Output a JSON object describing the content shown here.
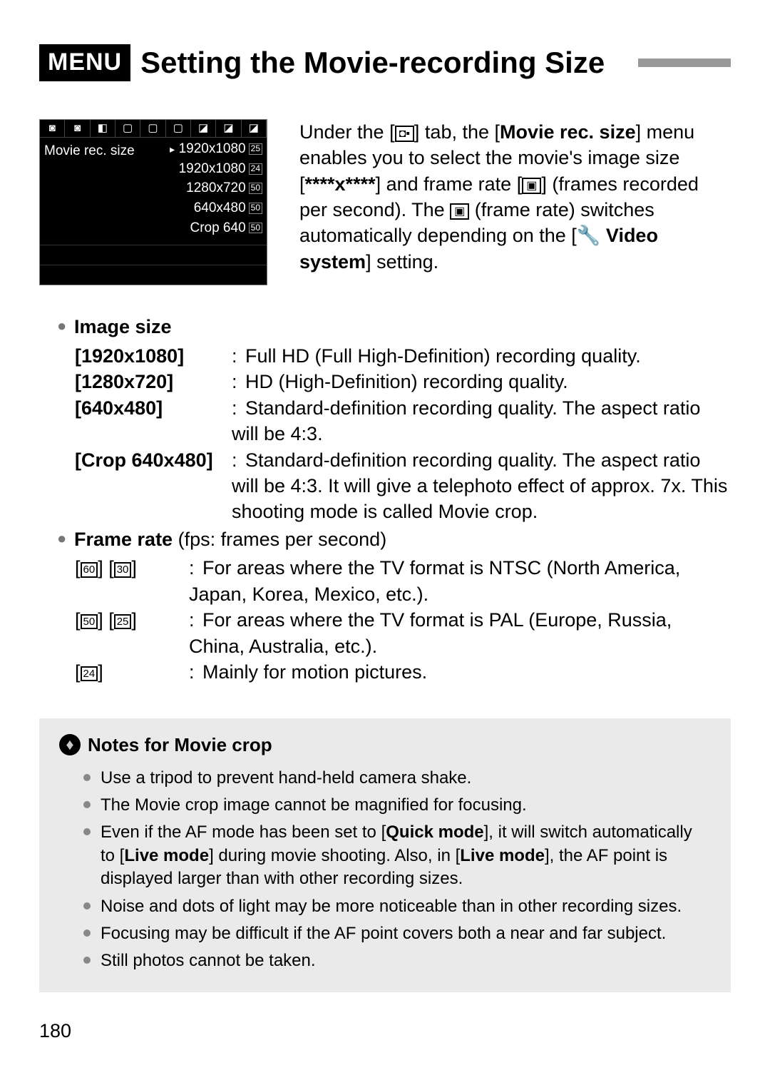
{
  "header": {
    "menu_badge": "MENU",
    "title": "Setting the Movie-recording Size"
  },
  "lcd": {
    "tab_icons": [
      "◙",
      "◙",
      "◧",
      "▢",
      "▢",
      "▢",
      "◪",
      "◪",
      "◪"
    ],
    "label": "Movie rec. size",
    "items": [
      {
        "marker": "▸",
        "res": "1920x1080",
        "fps": "25"
      },
      {
        "marker": "",
        "res": "1920x1080",
        "fps": "24"
      },
      {
        "marker": "",
        "res": "1280x720",
        "fps": "50"
      },
      {
        "marker": "",
        "res": "640x480",
        "fps": "50"
      },
      {
        "marker": "",
        "res": "Crop 640",
        "fps": "50"
      }
    ]
  },
  "intro": {
    "pre_tab": "Under the [",
    "tab_icon": "◘▪",
    "post_tab": "] tab, the [",
    "bold1": "Movie rec. size",
    "seg1": "] menu enables you to select the movie's image size [",
    "bold2": "****x****",
    "seg2": "] and frame rate [",
    "fr_icon": "▣",
    "seg3": "] (frames recorded per second). The ",
    "fr_icon2": "▣",
    "seg4": " (frame rate) switches automatically depending on the [",
    "wrench_icon": "🔧",
    "bold3": "Video system",
    "seg5": "] setting."
  },
  "image_size": {
    "heading": "Image size",
    "rows": [
      {
        "key": "[1920x1080]",
        "val": "Full HD (Full High-Definition) recording quality."
      },
      {
        "key": "[1280x720]",
        "val": "HD (High-Definition) recording quality."
      },
      {
        "key": "[640x480]",
        "val": "Standard-definition recording quality. The aspect ratio will be 4:3."
      },
      {
        "key": "[Crop 640x480]",
        "val": "Standard-definition recording quality. The aspect ratio will be 4:3. It will give a telephoto effect of approx. 7x. This shooting mode is called Movie crop."
      }
    ]
  },
  "frame_rate": {
    "heading_bold": "Frame rate",
    "heading_rest": " (fps: frames per second)",
    "rows": [
      {
        "icons": [
          "60",
          "30"
        ],
        "val": "For areas where the TV format is NTSC (North America, Japan, Korea, Mexico, etc.)."
      },
      {
        "icons": [
          "50",
          "25"
        ],
        "val": "For areas where the TV format is PAL (Europe, Russia, China, Australia, etc.)."
      },
      {
        "icons": [
          "24"
        ],
        "val": "Mainly for motion pictures."
      }
    ]
  },
  "notes": {
    "heading": "Notes for Movie crop",
    "items": [
      {
        "parts": [
          {
            "t": "Use a tripod to prevent hand-held camera shake."
          }
        ]
      },
      {
        "parts": [
          {
            "t": "The Movie crop image cannot be magnified for focusing."
          }
        ]
      },
      {
        "parts": [
          {
            "t": "Even if the AF mode has been set to ["
          },
          {
            "b": "Quick mode"
          },
          {
            "t": "], it will switch automatically to ["
          },
          {
            "b": "Live mode"
          },
          {
            "t": "] during movie shooting. Also, in ["
          },
          {
            "b": "Live mode"
          },
          {
            "t": "], the AF point is displayed larger than with other recording sizes."
          }
        ]
      },
      {
        "parts": [
          {
            "t": "Noise and dots of light may be more noticeable than in other recording sizes."
          }
        ]
      },
      {
        "parts": [
          {
            "t": "Focusing may be difficult if the AF point covers both a near and far subject."
          }
        ]
      },
      {
        "parts": [
          {
            "t": "Still photos cannot be taken."
          }
        ]
      }
    ]
  },
  "page_number": "180",
  "style": {
    "accent_gray": "#999999",
    "notes_bg": "#eaeaea"
  }
}
